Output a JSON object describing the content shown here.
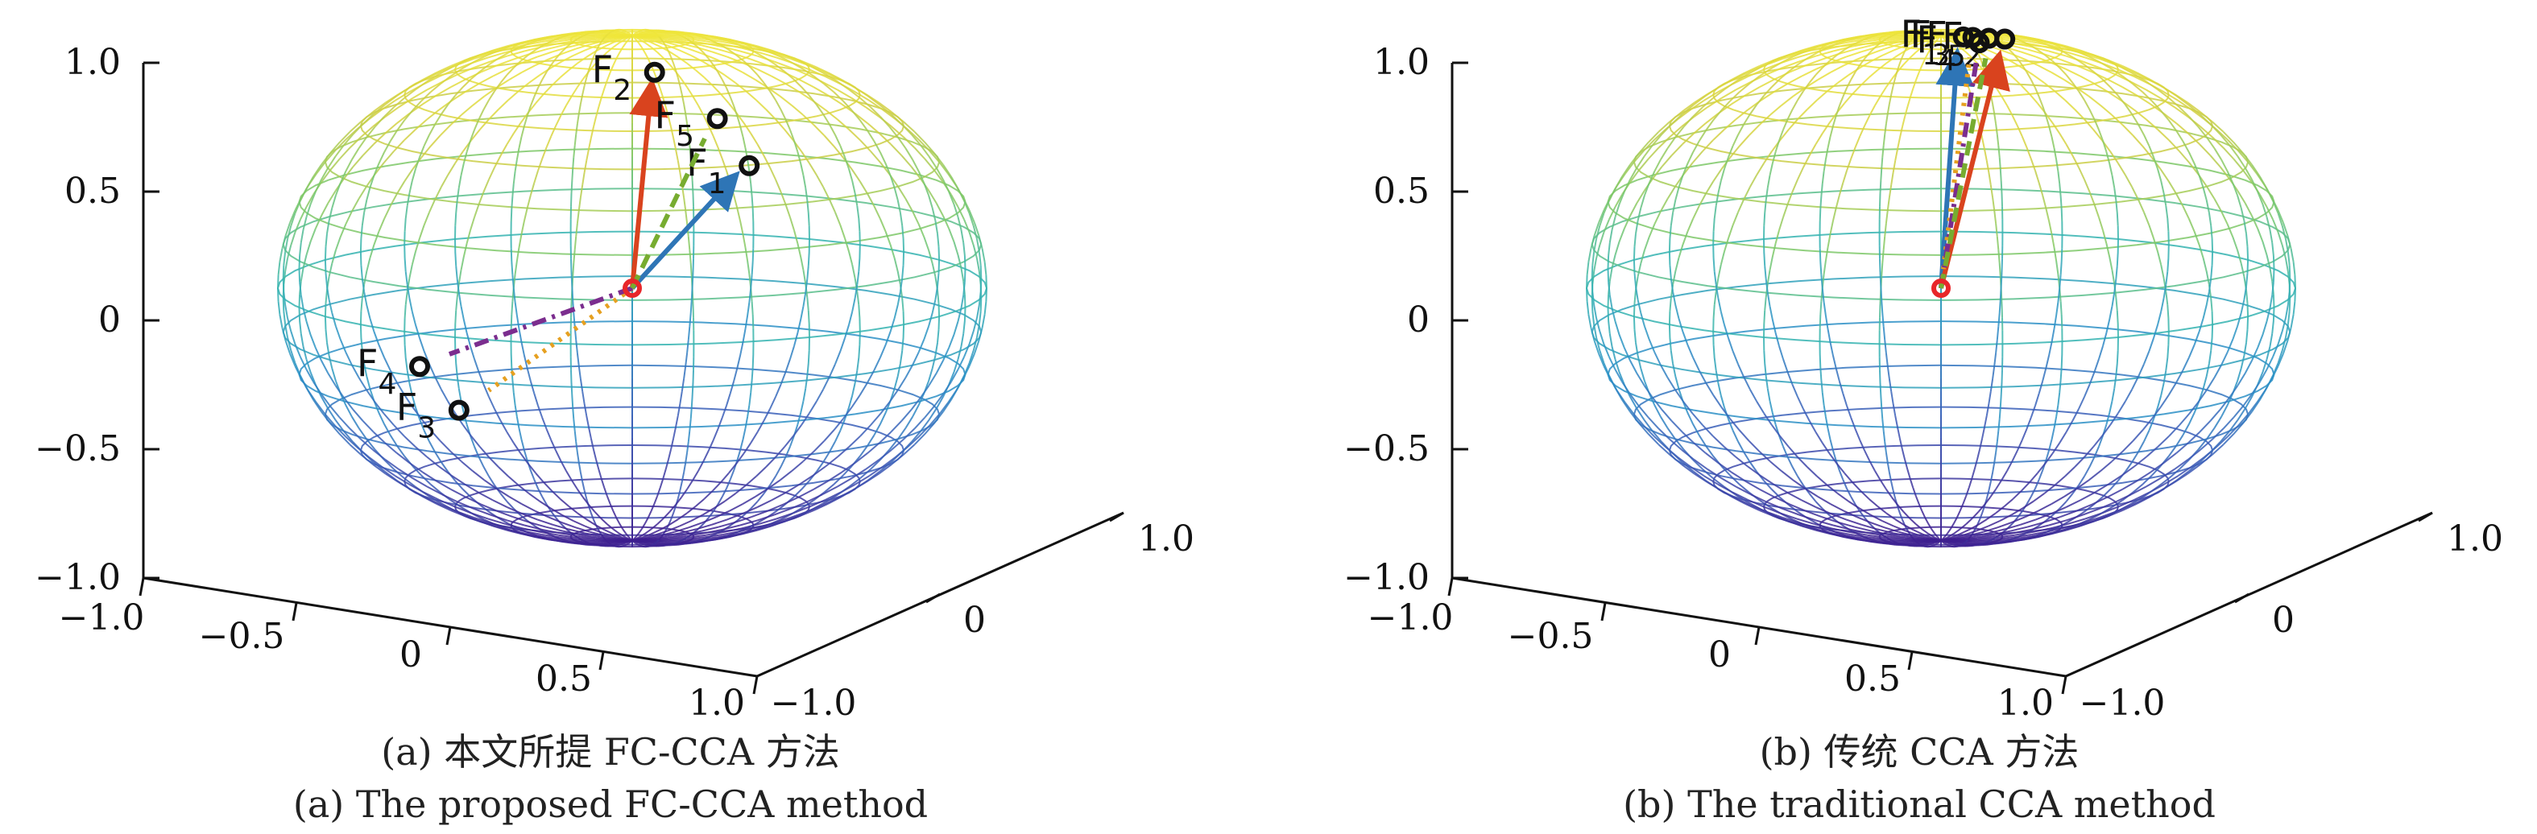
{
  "chart_data": [
    {
      "type": "scatter",
      "panel": "a",
      "caption_cn": "(a) 本文所提 FC-CCA 方法",
      "caption_en": "(a) The proposed FC-CCA method",
      "x_ticks": [
        "−1.0",
        "−0.5",
        "0",
        "0.5",
        "1.0"
      ],
      "y_ticks": [
        "−1.0",
        "0",
        "1.0"
      ],
      "z_ticks": [
        "−1.0",
        "−0.5",
        "0",
        "0.5",
        "1.0"
      ],
      "xlim": [
        -1,
        1
      ],
      "ylim": [
        -1,
        1
      ],
      "zlim": [
        -1,
        1
      ],
      "origin": {
        "x": 0,
        "y": 0,
        "z": 0
      },
      "points": [
        {
          "name": "F",
          "sub": "1",
          "x": 0.32,
          "y": 0.1,
          "z": 0.5,
          "vx": 0.28,
          "vy": 0.08,
          "vz": 0.45,
          "color": "#2e75b6",
          "style": "solid"
        },
        {
          "name": "F",
          "sub": "2",
          "x": 0.07,
          "y": 0.0,
          "z": 0.86,
          "vx": 0.06,
          "vy": 0.0,
          "vz": 0.8,
          "color": "#d9431e",
          "style": "solid"
        },
        {
          "name": "F",
          "sub": "3",
          "x": -0.45,
          "y": -0.2,
          "z": -0.5,
          "vx": -0.38,
          "vy": -0.15,
          "vz": -0.42,
          "color": "#e6a020",
          "style": "dotted"
        },
        {
          "name": "F",
          "sub": "4",
          "x": -0.55,
          "y": -0.25,
          "z": -0.33,
          "vx": -0.48,
          "vy": -0.2,
          "vz": -0.28,
          "color": "#7b2d8e",
          "style": "dashdot"
        },
        {
          "name": "F",
          "sub": "5",
          "x": 0.22,
          "y": 0.1,
          "z": 0.68,
          "vx": 0.19,
          "vy": 0.08,
          "vz": 0.6,
          "color": "#77ac30",
          "style": "dashed"
        }
      ]
    },
    {
      "type": "scatter",
      "panel": "b",
      "caption_cn": "(b) 传统 CCA 方法",
      "caption_en": "(b) The traditional CCA method",
      "x_ticks": [
        "−1.0",
        "−0.5",
        "0",
        "0.5",
        "1.0"
      ],
      "y_ticks": [
        "−1.0",
        "0",
        "1.0"
      ],
      "z_ticks": [
        "−1.0",
        "−0.5",
        "0",
        "0.5",
        "1.0"
      ],
      "xlim": [
        -1,
        1
      ],
      "ylim": [
        -1,
        1
      ],
      "zlim": [
        -1,
        1
      ],
      "origin": {
        "x": 0,
        "y": 0,
        "z": 0
      },
      "points": [
        {
          "name": "F",
          "sub": "1",
          "x": 0.07,
          "y": 0.0,
          "z": 1.0,
          "vx": 0.05,
          "vy": 0.0,
          "vz": 0.92,
          "color": "#2e75b6",
          "style": "solid"
        },
        {
          "name": "F",
          "sub": "2",
          "x": 0.2,
          "y": 0.0,
          "z": 1.0,
          "vx": 0.18,
          "vy": 0.0,
          "vz": 0.92,
          "color": "#d9431e",
          "style": "solid"
        },
        {
          "name": "F",
          "sub": "3",
          "x": 0.1,
          "y": 0.0,
          "z": 1.0,
          "vx": 0.09,
          "vy": 0.0,
          "vz": 0.92,
          "color": "#e6a020",
          "style": "dotted"
        },
        {
          "name": "F",
          "sub": "4",
          "x": 0.12,
          "y": 0.0,
          "z": 0.98,
          "vx": 0.11,
          "vy": 0.0,
          "vz": 0.9,
          "color": "#7b2d8e",
          "style": "dashdot"
        },
        {
          "name": "F",
          "sub": "5",
          "x": 0.15,
          "y": 0.0,
          "z": 1.0,
          "vx": 0.14,
          "vy": 0.0,
          "vz": 0.92,
          "color": "#77ac30",
          "style": "dashed"
        }
      ]
    }
  ],
  "colormap": [
    "#3e1f8f",
    "#3b5bb7",
    "#2c90c6",
    "#34b3b0",
    "#7cc86a",
    "#d0cf43",
    "#f0e63a"
  ]
}
